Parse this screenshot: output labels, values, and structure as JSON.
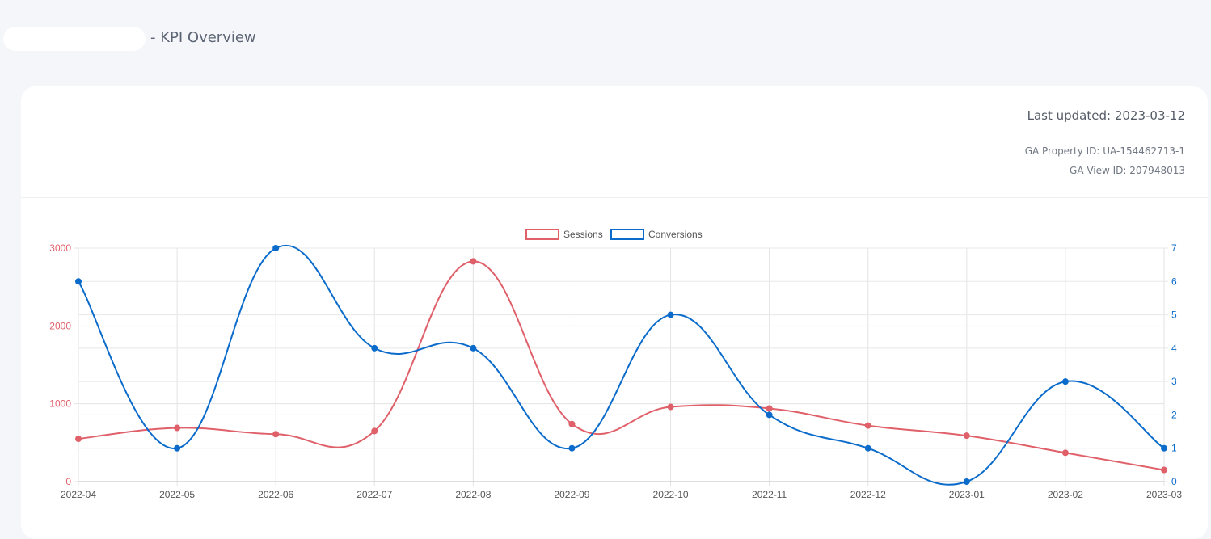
{
  "header": {
    "title": "- KPI Overview"
  },
  "info": {
    "last_updated": "Last updated: 2023-03-12",
    "property_id": "GA Property ID: UA-154462713-1",
    "view_id": "GA View ID: 207948013"
  },
  "colors": {
    "sessions": "#e0606a",
    "conversions": "#0b6bcb"
  },
  "chart_data": {
    "type": "line",
    "categories": [
      "2022-04",
      "2022-05",
      "2022-06",
      "2022-07",
      "2022-08",
      "2022-09",
      "2022-10",
      "2022-11",
      "2022-12",
      "2023-01",
      "2023-02",
      "2023-03"
    ],
    "series": [
      {
        "name": "Sessions",
        "axis": "left",
        "values": [
          550,
          690,
          610,
          650,
          2830,
          740,
          960,
          940,
          720,
          590,
          370,
          150
        ]
      },
      {
        "name": "Conversions",
        "axis": "right",
        "values": [
          6,
          1,
          7,
          4,
          4,
          1,
          5,
          2,
          1,
          0,
          3,
          1
        ]
      }
    ],
    "y_left": {
      "ylim": [
        0,
        3000
      ],
      "ticks": [
        "0",
        "1000",
        "2000",
        "3000"
      ]
    },
    "y_right": {
      "ylim": [
        0,
        7
      ],
      "ticks": [
        "0",
        "1",
        "2",
        "3",
        "4",
        "5",
        "6",
        "7"
      ]
    },
    "legend": "top-center",
    "grid": true
  }
}
